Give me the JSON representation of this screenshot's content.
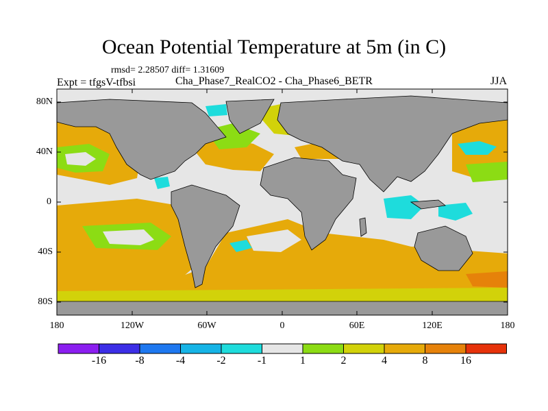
{
  "title": "Ocean Potential Temperature at 5m (in C)",
  "stats": "rmsd= 2.28507 diff= 1.31609",
  "left_label": "Expt = tfgsV-tfbsi",
  "center_label": "Cha_Phase7_RealCO2 - Cha_Phase6_BETR",
  "right_label": "JJA",
  "lat_ticks": [
    "80N",
    "40N",
    "0",
    "40S",
    "80S"
  ],
  "lon_ticks": [
    "180",
    "120W",
    "60W",
    "0",
    "60E",
    "120E",
    "180"
  ],
  "colorbar": {
    "colors": [
      "#8b1ef0",
      "#3c2ee6",
      "#1e78f0",
      "#16b4e6",
      "#1edcdc",
      "#e6e6e6",
      "#8cdc14",
      "#d2d20a",
      "#e6aa0a",
      "#e6820a",
      "#e6320a"
    ],
    "labels": [
      "-16",
      "-8",
      "-4",
      "-2",
      "-1",
      "1",
      "2",
      "4",
      "8",
      "16"
    ]
  },
  "land_color": "#999999"
}
